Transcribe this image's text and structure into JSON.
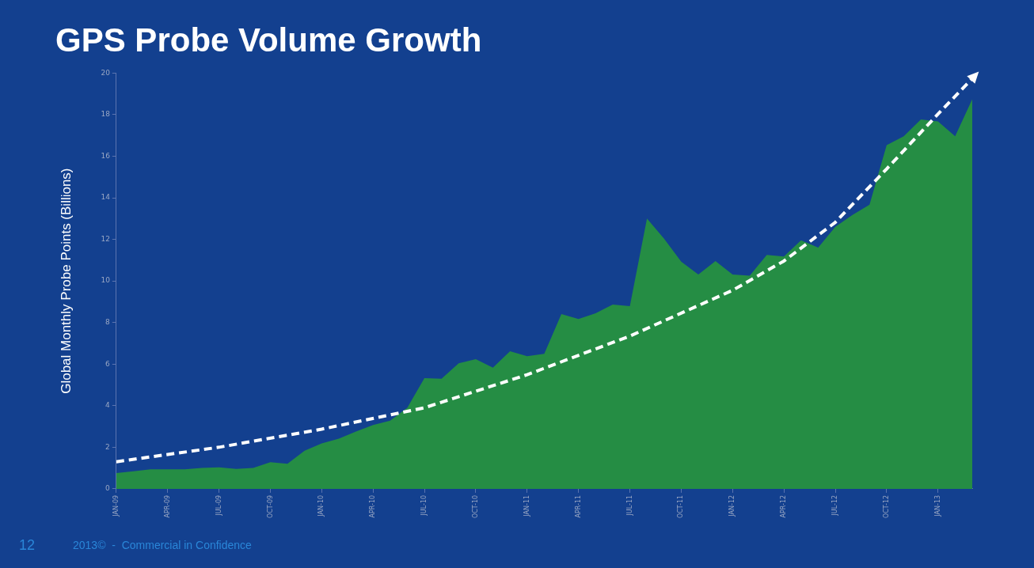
{
  "chart_data": {
    "type": "area",
    "title": "GPS Probe Volume Growth",
    "ylabel": "Global Monthly Probe Points (Billions)",
    "x": [
      "2009-01",
      "2009-02",
      "2009-03",
      "2009-04",
      "2009-05",
      "2009-06",
      "2009-07",
      "2009-08",
      "2009-09",
      "2009-10",
      "2009-11",
      "2009-12",
      "2010-01",
      "2010-02",
      "2010-03",
      "2010-04",
      "2010-05",
      "2010-06",
      "2010-07",
      "2010-08",
      "2010-09",
      "2010-10",
      "2010-11",
      "2010-12",
      "2011-01",
      "2011-02",
      "2011-03",
      "2011-04",
      "2011-05",
      "2011-06",
      "2011-07",
      "2011-08",
      "2011-09",
      "2011-10",
      "2011-11",
      "2011-12",
      "2012-01",
      "2012-02",
      "2012-03",
      "2012-04",
      "2012-05",
      "2012-06",
      "2012-07",
      "2012-08",
      "2012-09",
      "2012-10",
      "2012-11",
      "2012-12",
      "2013-01",
      "2013-02",
      "2013-03"
    ],
    "series": [
      {
        "type": "area",
        "color": "#258d44",
        "values": [
          0.76,
          0.84,
          0.94,
          0.94,
          0.94,
          1.0,
          1.03,
          0.96,
          1.0,
          1.28,
          1.2,
          1.83,
          2.18,
          2.41,
          2.76,
          3.07,
          3.28,
          3.9,
          5.32,
          5.3,
          6.04,
          6.24,
          5.83,
          6.62,
          6.38,
          6.49,
          8.41,
          8.17,
          8.45,
          8.86,
          8.79,
          13.0,
          12.03,
          10.93,
          10.31,
          10.96,
          10.31,
          10.25,
          11.25,
          11.18,
          11.96,
          11.6,
          12.6,
          13.17,
          13.67,
          16.53,
          16.96,
          17.77,
          17.67,
          16.96,
          18.74
        ]
      },
      {
        "type": "line",
        "color": "#ffffff",
        "line_style": "dashed",
        "marker": "none",
        "x": [
          "2009-01",
          "2009-07",
          "2010-01",
          "2010-07",
          "2011-01",
          "2011-07",
          "2012-01",
          "2012-04",
          "2012-07",
          "2012-10",
          "2013-01",
          "2013-03"
        ],
        "values": [
          1.3,
          2.0,
          2.87,
          3.9,
          5.49,
          7.35,
          9.55,
          10.96,
          12.82,
          15.39,
          18.03,
          19.74
        ]
      }
    ],
    "xlim": [
      "2009-01",
      "2013-03"
    ],
    "xticks": [
      {
        "value": "2009-01",
        "label": "JAN-09"
      },
      {
        "value": "2009-04",
        "label": "APR-09"
      },
      {
        "value": "2009-07",
        "label": "JUL-09"
      },
      {
        "value": "2009-10",
        "label": "OCT-09"
      },
      {
        "value": "2010-01",
        "label": "JAN-10"
      },
      {
        "value": "2010-04",
        "label": "APR-10"
      },
      {
        "value": "2010-07",
        "label": "JUL-10"
      },
      {
        "value": "2010-10",
        "label": "OCT-10"
      },
      {
        "value": "2011-01",
        "label": "JAN-11"
      },
      {
        "value": "2011-04",
        "label": "APR-11"
      },
      {
        "value": "2011-07",
        "label": "JUL-11"
      },
      {
        "value": "2011-10",
        "label": "OCT-11"
      },
      {
        "value": "2012-01",
        "label": "JAN-12"
      },
      {
        "value": "2012-04",
        "label": "APR-12"
      },
      {
        "value": "2012-07",
        "label": "JUL-12"
      },
      {
        "value": "2012-10",
        "label": "OCT-12"
      },
      {
        "value": "2013-01",
        "label": "JAN-13"
      }
    ],
    "ylim": [
      0,
      20
    ],
    "yticks": [
      0,
      2,
      4,
      6,
      8,
      10,
      12,
      14,
      16,
      18,
      20
    ],
    "grid": false,
    "legend": false,
    "annotations": [
      "12",
      "2013©  -  Commercial in Confidence"
    ]
  }
}
